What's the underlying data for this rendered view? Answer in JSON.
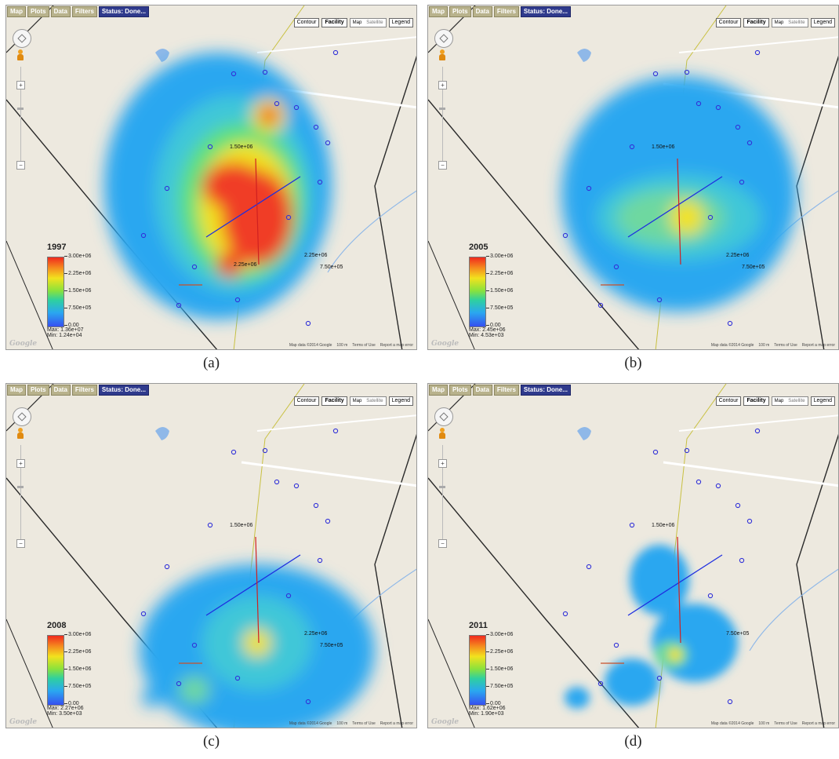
{
  "tabs": [
    "Map",
    "Plots",
    "Data",
    "Filters",
    "Status: Done..."
  ],
  "controls": {
    "contour": "Contour",
    "facility": "Facility",
    "map": "Map",
    "satellite": "Satellite",
    "legend": "Legend"
  },
  "zoom": {
    "plus": "+",
    "minus": "−"
  },
  "legend_ticks": [
    "3.00e+06",
    "2.25e+06",
    "1.50e+06",
    "7.50e+05",
    "0.00"
  ],
  "footer": {
    "map_data": "Map data ©2014 Google",
    "scale": "100 m",
    "terms": "Terms of Use",
    "report": "Report a map error"
  },
  "google_logo": "Google",
  "panels": [
    {
      "caption": "(a)",
      "year": "1997",
      "max": "Max: 1.36e+07",
      "min": "Min: 1.24e+04",
      "contour_labels": [
        "1.50e+06",
        "2.25e+06",
        "7.50e+05",
        "2.25e+06"
      ],
      "intensity": "high"
    },
    {
      "caption": "(b)",
      "year": "2005",
      "max": "Max: 2.45e+06",
      "min": "Min: 4.53e+03",
      "contour_labels": [
        "1.50e+06",
        "2.25e+06",
        "7.50e+05"
      ],
      "intensity": "medium"
    },
    {
      "caption": "(c)",
      "year": "2008",
      "max": "Max: 2.27e+06",
      "min": "Min: 3.50e+03",
      "contour_labels": [
        "1.50e+06",
        "2.25e+06",
        "7.50e+05"
      ],
      "intensity": "low"
    },
    {
      "caption": "(d)",
      "year": "2011",
      "max": "Max: 1.62e+06",
      "min": "Min: 1.90e+03",
      "contour_labels": [
        "1.50e+06",
        "7.50e+05"
      ],
      "intensity": "lowest"
    }
  ],
  "colors": {
    "hot": "#f03c28",
    "warm": "#f2e21e",
    "mid": "#5fe07a",
    "cool": "#2aa7f0",
    "cold": "#3a7cf0",
    "well": "#3232d8",
    "transect_blue": "#1e2ee0",
    "transect_red": "#d02020",
    "creek": "#8fb8e8",
    "road": "#2a2a2a",
    "railway": "#c8c040"
  }
}
